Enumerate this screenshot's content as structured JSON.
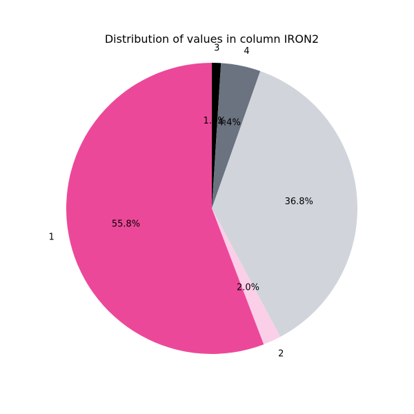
{
  "chart_data": {
    "type": "pie",
    "title": "Distribution of values in column IRON2",
    "slices": [
      {
        "label": "3",
        "value": 1.0,
        "pct_label": "1.0%",
        "color": "#000000"
      },
      {
        "label": "4",
        "value": 4.4,
        "pct_label": "4.4%",
        "color": "#6b7280"
      },
      {
        "label": "",
        "value": 36.8,
        "pct_label": "36.8%",
        "color": "#d1d5db"
      },
      {
        "label": "2",
        "value": 2.0,
        "pct_label": "2.0%",
        "color": "#fbcfe8"
      },
      {
        "label": "1",
        "value": 55.8,
        "pct_label": "55.8%",
        "color": "#ec4899"
      }
    ],
    "start_angle_deg": 90,
    "direction": "counterclockwise"
  }
}
